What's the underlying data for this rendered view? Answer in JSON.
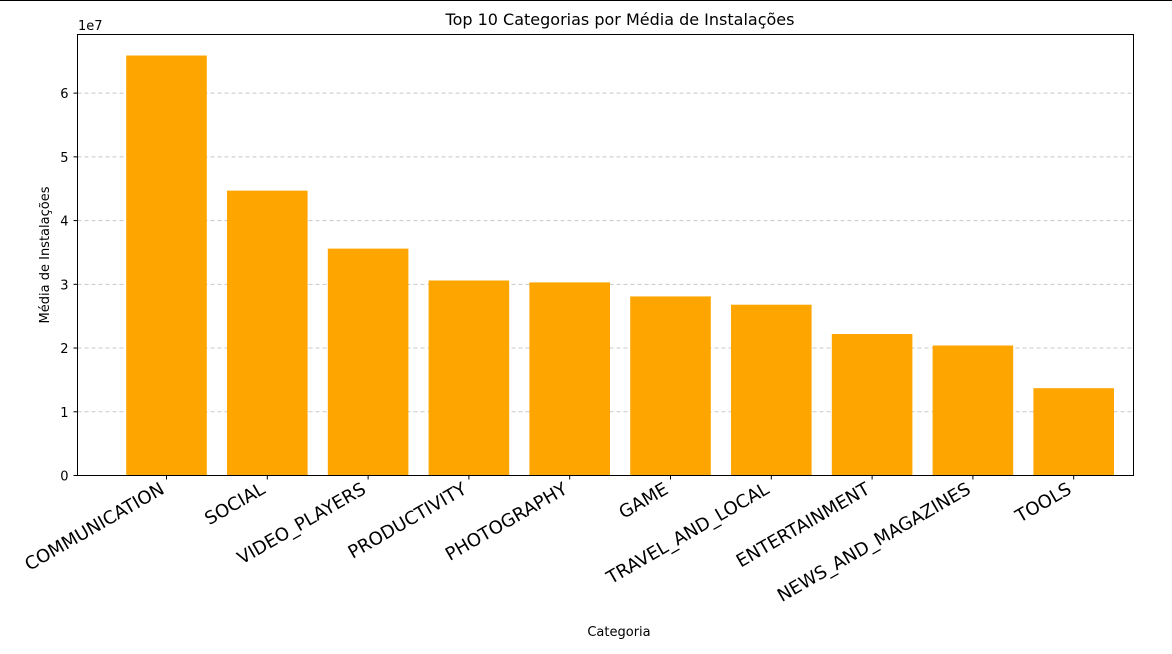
{
  "chart_data": {
    "type": "bar",
    "title": "Top 10 Categorias por Média de Instalações",
    "xlabel": "Categoria",
    "ylabel": "Média de Instalações",
    "y_offset_label": "1e7",
    "categories": [
      "COMMUNICATION",
      "SOCIAL",
      "VIDEO_PLAYERS",
      "PRODUCTIVITY",
      "PHOTOGRAPHY",
      "GAME",
      "TRAVEL_AND_LOCAL",
      "ENTERTAINMENT",
      "NEWS_AND_MAGAZINES",
      "TOOLS"
    ],
    "values": [
      65900000,
      44700000,
      35600000,
      30600000,
      30300000,
      28100000,
      26800000,
      22200000,
      20400000,
      13700000
    ],
    "y_ticks": [
      0,
      1,
      2,
      3,
      4,
      5,
      6
    ],
    "y_tick_scale": 10000000,
    "ylim": [
      0,
      69200000
    ],
    "grid": "y-dashed",
    "bar_color": "#ffa500",
    "legend": "none"
  }
}
